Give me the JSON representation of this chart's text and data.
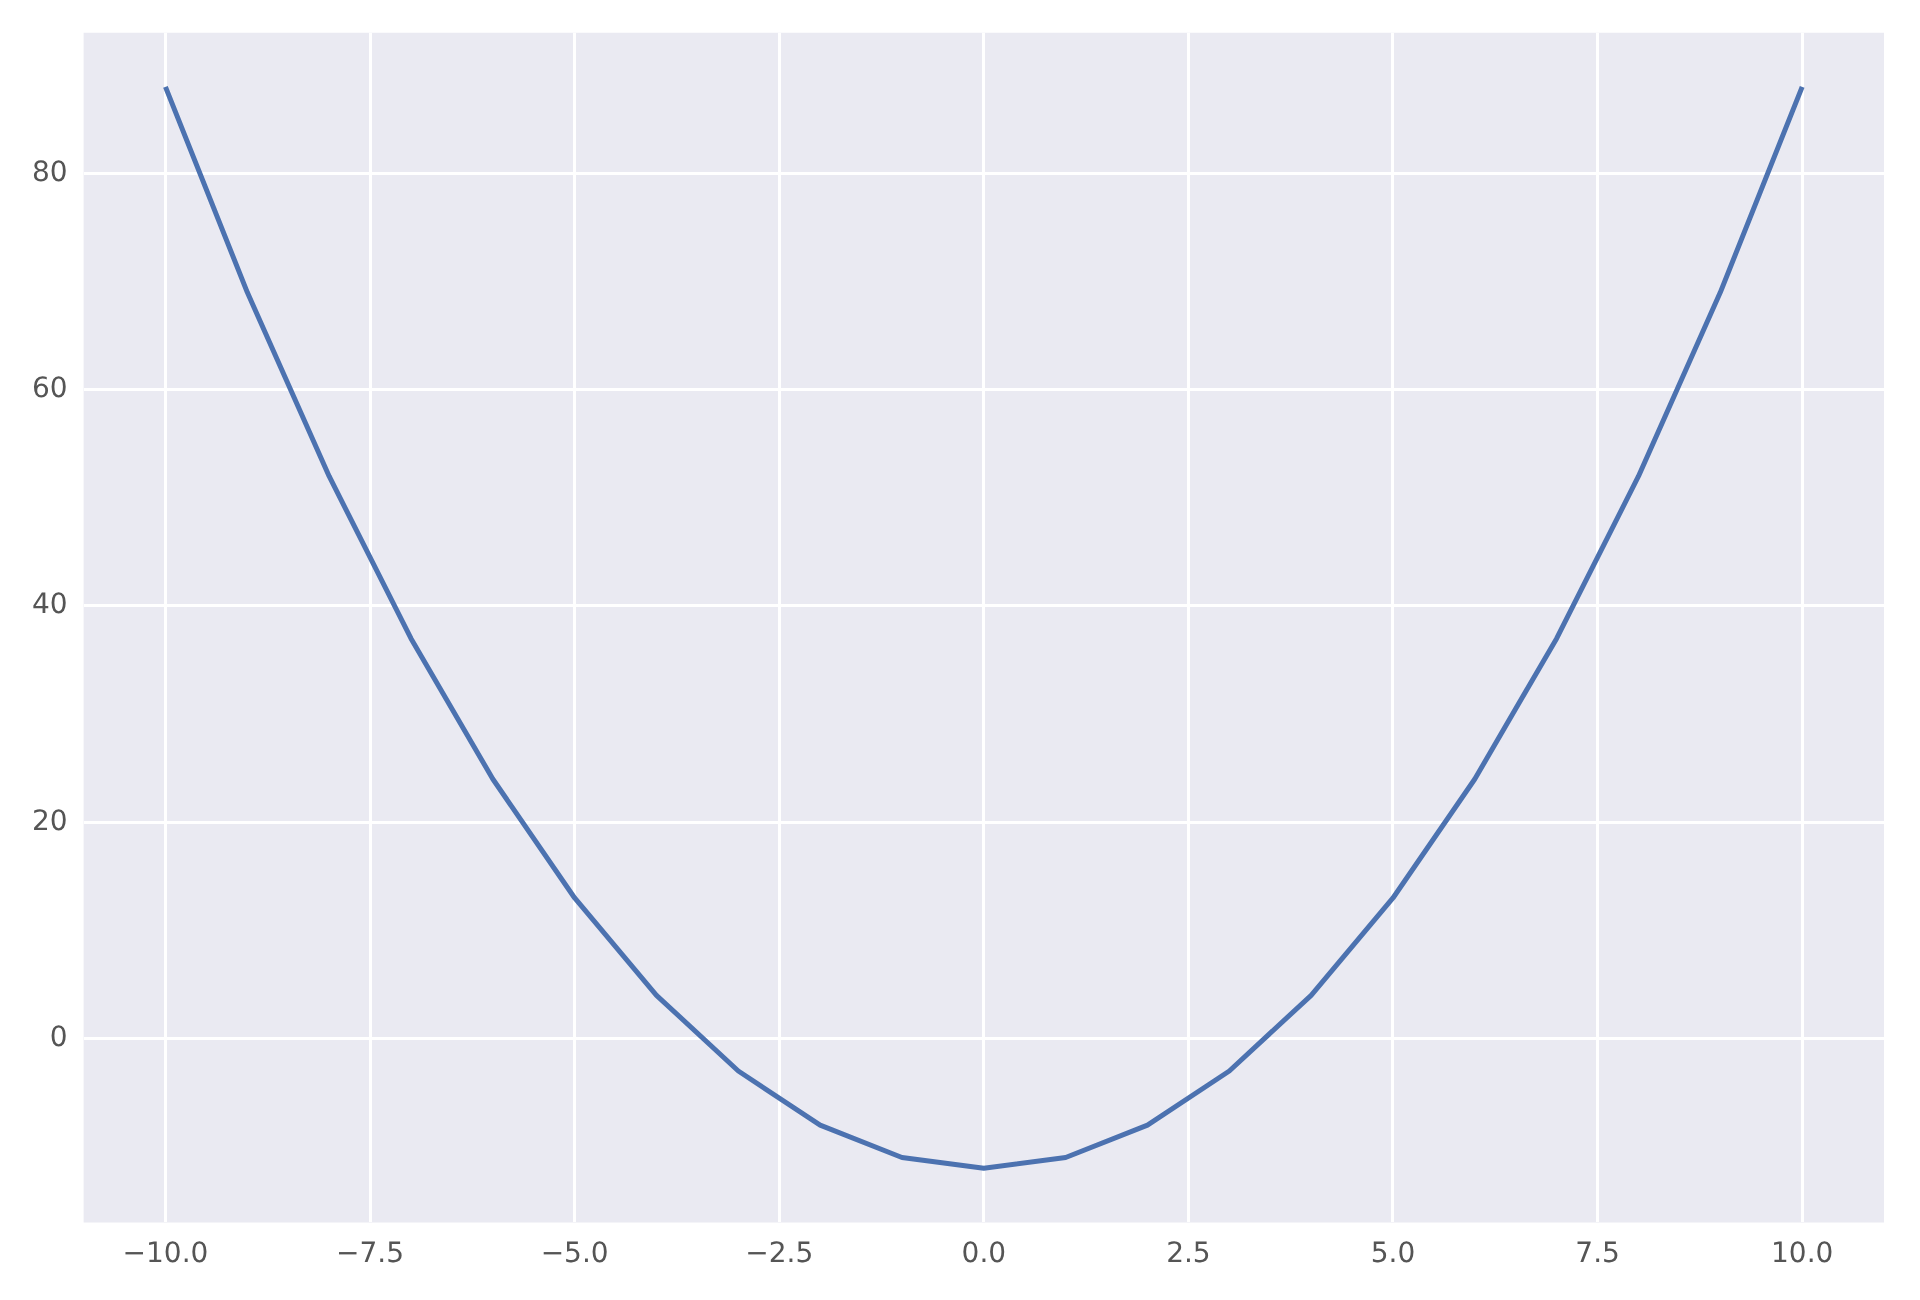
{
  "chart_data": {
    "type": "line",
    "x": [
      -10,
      -9,
      -8,
      -7,
      -6,
      -5,
      -4,
      -3,
      -2,
      -1,
      0,
      1,
      2,
      3,
      4,
      5,
      6,
      7,
      8,
      9,
      10
    ],
    "series": [
      {
        "color": "#4c72b0",
        "values": [
          88,
          69,
          52,
          37,
          24,
          13,
          4,
          -3,
          -8,
          -11,
          -12,
          -11,
          -8,
          -3,
          4,
          13,
          24,
          37,
          52,
          69,
          88
        ]
      }
    ],
    "xlim": [
      -11,
      11
    ],
    "xticks": [
      {
        "value": -10,
        "label": "−10.0"
      },
      {
        "value": -7.5,
        "label": "−7.5"
      },
      {
        "value": -5,
        "label": "−5.0"
      },
      {
        "value": -2.5,
        "label": "−2.5"
      },
      {
        "value": 0,
        "label": "0.0"
      },
      {
        "value": 2.5,
        "label": "2.5"
      },
      {
        "value": 5,
        "label": "5.0"
      },
      {
        "value": 7.5,
        "label": "7.5"
      },
      {
        "value": 10,
        "label": "10.0"
      }
    ],
    "ylim": [
      -17,
      93
    ],
    "yticks": [
      0,
      20,
      40,
      60,
      80
    ],
    "grid": true,
    "legend": false,
    "marker": "none",
    "line_style": "solid"
  }
}
